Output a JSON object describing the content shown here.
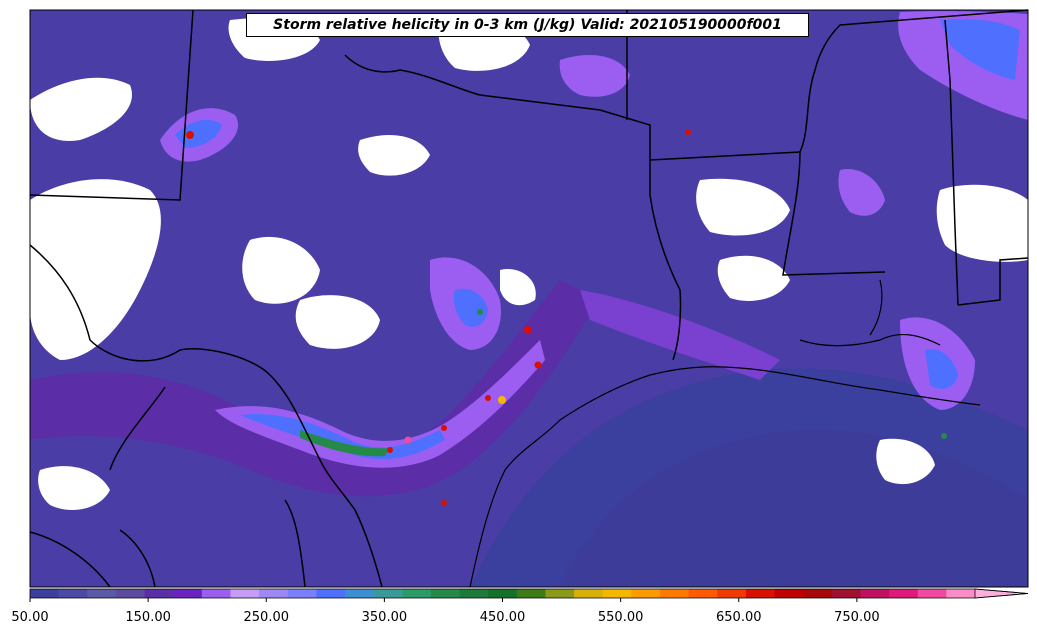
{
  "title": "Storm relative helicity in 0-3 km (J/kg) Valid: 202105190000f001",
  "colorbar": {
    "min": 50,
    "max": 850,
    "step": 25,
    "extend": "max",
    "tick_labels": [
      "50.00",
      "150.00",
      "250.00",
      "350.00",
      "450.00",
      "550.00",
      "650.00",
      "750.00"
    ],
    "tick_values": [
      50,
      150,
      250,
      350,
      450,
      550,
      650,
      750
    ],
    "colors": [
      "#3b3f9e",
      "#4b4aa5",
      "#5a5aa6",
      "#5e4a9e",
      "#5b2ea8",
      "#6a22c0",
      "#9c5ef0",
      "#c79cf7",
      "#9f88f4",
      "#7a80ff",
      "#4f70ff",
      "#3d8fd4",
      "#3a9a9a",
      "#2e9a6a",
      "#25894a",
      "#1d7a3a",
      "#15702a",
      "#3d7a18",
      "#8a9a18",
      "#d8b00a",
      "#f5b800",
      "#ff9a00",
      "#ff7a00",
      "#ff5a00",
      "#f03a00",
      "#d81000",
      "#c00000",
      "#a80808",
      "#a01030",
      "#c01060",
      "#e01a7a",
      "#f04aa0",
      "#fa8cc8"
    ],
    "extend_color": "#fbb0dc"
  },
  "map": {
    "fill_colors": {
      "low": "#3b3f9e",
      "mid": "#5b2ea8",
      "high": "#9c5ef0",
      "peak": "#4f70ff",
      "core": "#25894a",
      "max": "#d81000"
    },
    "boundaries_color": "#000000"
  }
}
